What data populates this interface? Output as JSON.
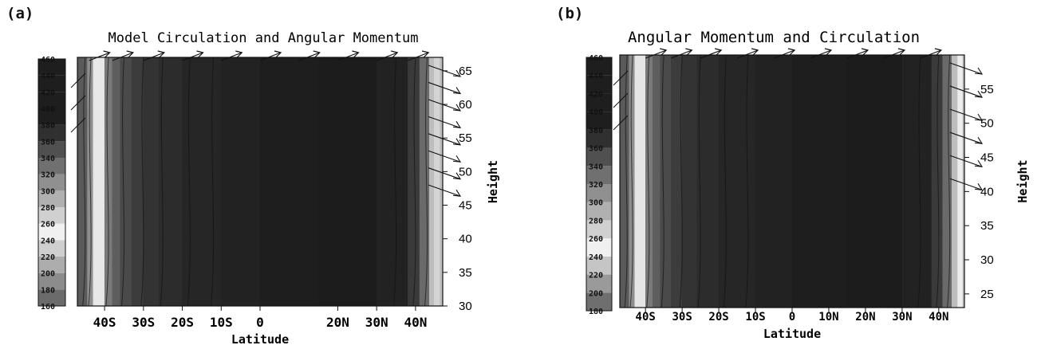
{
  "panel_labels": [
    "(a)",
    "(b)"
  ],
  "chart_data": [
    {
      "type": "heatmap",
      "title": "Model Circulation and Angular Momentum",
      "xlabel": "Latitude",
      "ylabel": "Height",
      "x_tick_labels": [
        "40S",
        "30S",
        "20S",
        "10S",
        "0",
        "20N",
        "30N",
        "40N"
      ],
      "x_tick_values": [
        -40,
        -30,
        -20,
        -10,
        0,
        20,
        30,
        40
      ],
      "xlim": [
        -47,
        47
      ],
      "y_ticks": [
        30,
        35,
        40,
        45,
        50,
        55,
        60,
        65
      ],
      "ylim": [
        30,
        67
      ],
      "colorbar_ticks": [
        160,
        180,
        200,
        220,
        240,
        260,
        280,
        300,
        320,
        340,
        360,
        380,
        400,
        420,
        440,
        460
      ],
      "colorbar_range": [
        160,
        460
      ],
      "colormap": "grayscale, dark at high values, light near 240-260",
      "contours": "angular momentum contours nearly vertical, lightest band near 42S, light band near 45N",
      "vectors": "circulation arrows pointing toward increasing latitude along upper boundary and along right edge"
    },
    {
      "type": "heatmap",
      "title": "Angular Momentum and Circulation",
      "xlabel": "Latitude",
      "ylabel": "Height",
      "x_tick_labels": [
        "40S",
        "30S",
        "20S",
        "10S",
        "0",
        "10N",
        "20N",
        "30N",
        "40N"
      ],
      "x_tick_values": [
        -40,
        -30,
        -20,
        -10,
        0,
        10,
        20,
        30,
        40
      ],
      "xlim": [
        -47,
        47
      ],
      "y_ticks": [
        25,
        30,
        35,
        40,
        45,
        50,
        55
      ],
      "ylim": [
        23,
        60
      ],
      "colorbar_ticks": [
        180,
        200,
        220,
        240,
        260,
        280,
        300,
        320,
        340,
        360,
        380,
        400,
        420,
        440,
        460
      ],
      "colorbar_range": [
        180,
        460
      ],
      "colormap": "grayscale, dark at high values, light near 240-260",
      "contours": "angular momentum contours nearly vertical, light band near 42S and at 45N edge",
      "vectors": "circulation arrows pointing toward increasing latitude along upper boundary and along right edge"
    }
  ]
}
